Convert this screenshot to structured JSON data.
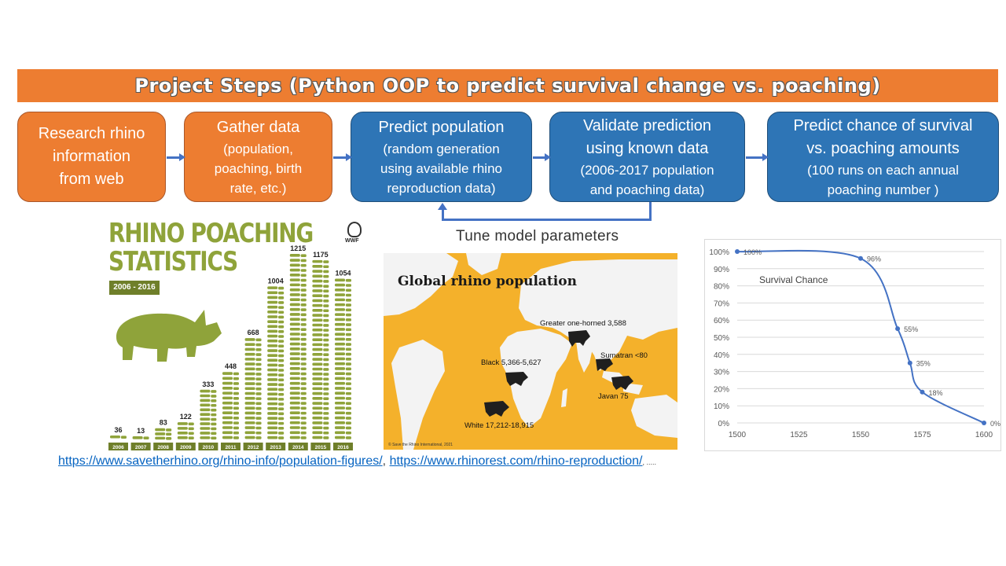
{
  "banner": {
    "title": "Project Steps (Python OOP to predict survival change vs. poaching)"
  },
  "steps": [
    {
      "lines": [
        "Research rhino",
        "information",
        "from web"
      ],
      "sub": []
    },
    {
      "lines": [
        "Gather data"
      ],
      "sub": [
        "(population,",
        "poaching, birth",
        "rate, etc.)"
      ]
    },
    {
      "lines": [
        "Predict population"
      ],
      "sub": [
        "(random generation",
        "using available rhino",
        "reproduction data)"
      ]
    },
    {
      "lines": [
        "Validate prediction",
        "using known data"
      ],
      "sub": [
        "(2006-2017 population",
        "and poaching data)"
      ]
    },
    {
      "lines": [
        "Predict chance of survival",
        "vs. poaching amounts"
      ],
      "sub": [
        "(100 runs on each annual",
        "poaching number )"
      ]
    }
  ],
  "tune_label": "Tune model parameters",
  "links": {
    "link1": "https://www.savetherhino.org/rhino-info/population-figures/",
    "sep": ",",
    "link2": "https://www.rhinorest.com/rhino-reproduction/",
    "tail": ", ....."
  },
  "poaching": {
    "title_line1": "RHINO POACHING",
    "title_line2": "STATISTICS",
    "range": "2006 - 2016",
    "logo_text": "WWF",
    "color": "#8FA33A",
    "chart_data": {
      "type": "bar",
      "categories": [
        "2006",
        "2007",
        "2008",
        "2009",
        "2010",
        "2011",
        "2012",
        "2013",
        "2014",
        "2015",
        "2016"
      ],
      "values": [
        36,
        13,
        83,
        122,
        333,
        448,
        668,
        1004,
        1215,
        1175,
        1054
      ]
    }
  },
  "map": {
    "title": "Global rhino population",
    "labels": {
      "greater": "Greater one-horned  3,588",
      "black": "Black 5,366-5,627",
      "sumatran": "Sumatran <80",
      "javan": "Javan 75",
      "white": "White 17,212-18,915"
    },
    "credit": "© Save the Rhino International, 2021",
    "background": "#F4B12B"
  },
  "survival": {
    "title": "Survival Chance",
    "chart_data": {
      "type": "line",
      "x": [
        1500,
        1550,
        1565,
        1570,
        1575,
        1600
      ],
      "y": [
        100,
        96,
        55,
        35,
        18,
        0
      ],
      "labels": [
        "100%",
        "96%",
        "55%",
        "35%",
        "18%",
        "0%"
      ],
      "xlim": [
        1500,
        1600
      ],
      "xticks": [
        1500,
        1525,
        1550,
        1575,
        1600
      ],
      "ylim": [
        0,
        100
      ],
      "yticks": [
        "0%",
        "10%",
        "20%",
        "30%",
        "40%",
        "50%",
        "60%",
        "70%",
        "80%",
        "90%",
        "100%"
      ],
      "grid": true,
      "color": "#4472C4"
    }
  }
}
